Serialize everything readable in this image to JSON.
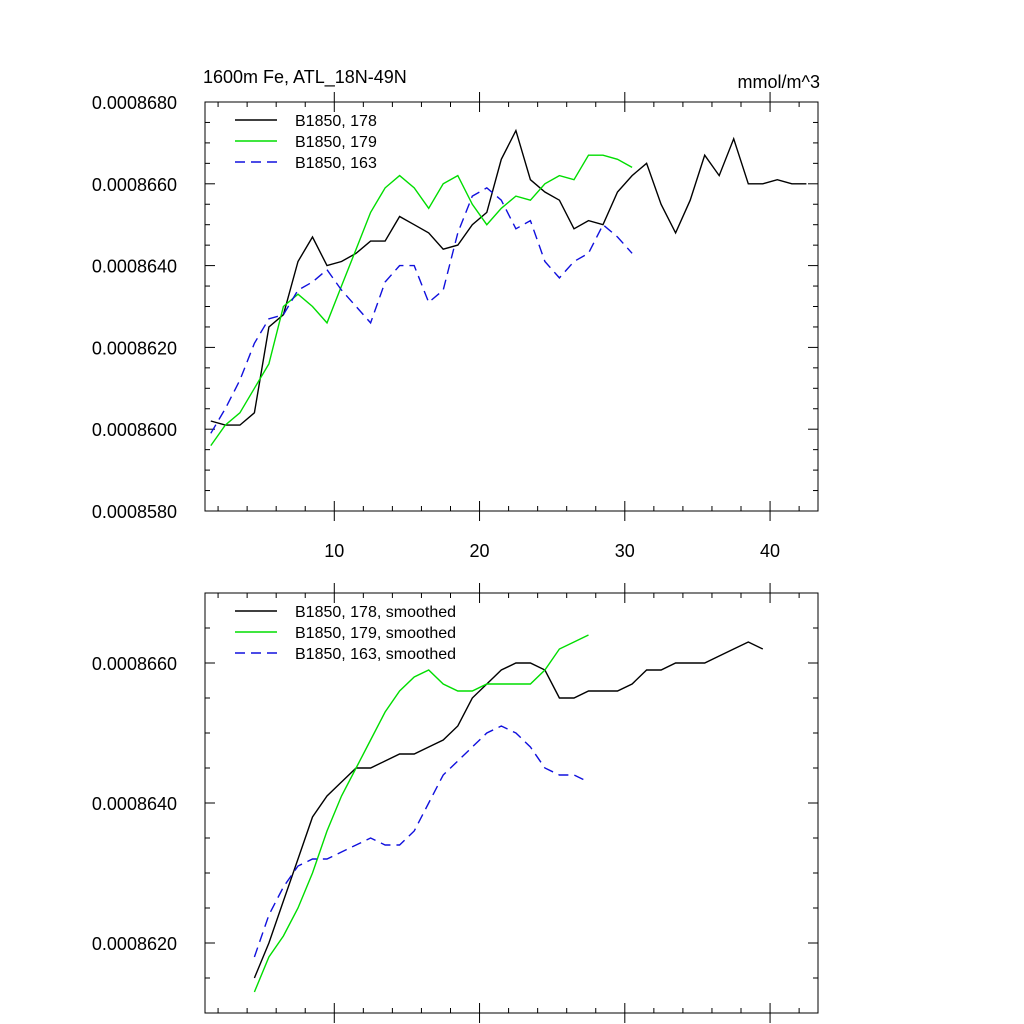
{
  "chart_data": [
    {
      "type": "line",
      "title": "1600m Fe, ATL_18N-49N",
      "units": "mmol/m^3",
      "xlabel": "",
      "ylabel": "",
      "xlim": [
        1.1,
        43.3
      ],
      "ylim": [
        0.000858,
        0.000868
      ],
      "x_ticks": [
        10,
        20,
        30,
        40
      ],
      "x_tick_labels": [
        "10",
        "20",
        "30",
        "40"
      ],
      "y_ticks": [
        0.000858,
        0.00086,
        0.000862,
        0.000864,
        0.000866,
        0.000868
      ],
      "y_tick_labels": [
        "0.0008580",
        "0.0008600",
        "0.0008620",
        "0.0008640",
        "0.0008660",
        "0.0008680"
      ],
      "legend_position": "top-left",
      "series": [
        {
          "name": "B1850, 178",
          "color": "#000000",
          "dash": "solid",
          "x": [
            1.5,
            2.5,
            3.5,
            4.5,
            5.5,
            6.5,
            7.5,
            8.5,
            9.5,
            10.5,
            11.5,
            12.5,
            13.5,
            14.5,
            15.5,
            16.5,
            17.5,
            18.5,
            19.5,
            20.5,
            21.5,
            22.5,
            23.5,
            24.5,
            25.5,
            26.5,
            27.5,
            28.5,
            29.5,
            30.5,
            31.5,
            32.5,
            33.5,
            34.5,
            35.5,
            36.5,
            37.5,
            38.5,
            39.5,
            40.5,
            41.5,
            42.5
          ],
          "y": [
            0.0008602,
            0.0008601,
            0.0008601,
            0.0008604,
            0.0008625,
            0.0008628,
            0.0008641,
            0.0008647,
            0.000864,
            0.0008641,
            0.0008643,
            0.0008646,
            0.0008646,
            0.0008652,
            0.000865,
            0.0008648,
            0.0008644,
            0.0008645,
            0.000865,
            0.0008653,
            0.0008666,
            0.0008673,
            0.0008661,
            0.0008658,
            0.0008656,
            0.0008649,
            0.0008651,
            0.000865,
            0.0008658,
            0.0008662,
            0.0008665,
            0.0008655,
            0.0008648,
            0.0008656,
            0.0008667,
            0.0008662,
            0.0008671,
            0.000866,
            0.000866,
            0.0008661,
            0.000866,
            0.000866
          ]
        },
        {
          "name": "B1850, 179",
          "color": "#00dd00",
          "dash": "solid",
          "x": [
            1.5,
            2.5,
            3.5,
            4.5,
            5.5,
            6.5,
            7.5,
            8.5,
            9.5,
            10.5,
            11.5,
            12.5,
            13.5,
            14.5,
            15.5,
            16.5,
            17.5,
            18.5,
            19.5,
            20.5,
            21.5,
            22.5,
            23.5,
            24.5,
            25.5,
            26.5,
            27.5,
            28.5,
            29.5,
            30.5
          ],
          "y": [
            0.0008596,
            0.0008601,
            0.0008604,
            0.000861,
            0.0008616,
            0.000863,
            0.0008633,
            0.000863,
            0.0008626,
            0.0008635,
            0.0008644,
            0.0008653,
            0.0008659,
            0.0008662,
            0.0008659,
            0.0008654,
            0.000866,
            0.0008662,
            0.0008655,
            0.000865,
            0.0008654,
            0.0008657,
            0.0008656,
            0.000866,
            0.0008662,
            0.0008661,
            0.0008667,
            0.0008667,
            0.0008666,
            0.0008664
          ]
        },
        {
          "name": "B1850, 163",
          "color": "#1010dd",
          "dash": "dashed",
          "x": [
            1.5,
            2.5,
            3.5,
            4.5,
            5.5,
            6.5,
            7.5,
            8.5,
            9.5,
            10.5,
            11.5,
            12.5,
            13.5,
            14.5,
            15.5,
            16.5,
            17.5,
            18.5,
            19.5,
            20.5,
            21.5,
            22.5,
            23.5,
            24.5,
            25.5,
            26.5,
            27.5,
            28.5,
            29.5,
            30.5
          ],
          "y": [
            0.0008599,
            0.0008605,
            0.0008612,
            0.0008621,
            0.0008627,
            0.0008628,
            0.0008634,
            0.0008636,
            0.0008639,
            0.0008634,
            0.000863,
            0.0008626,
            0.0008636,
            0.000864,
            0.000864,
            0.0008631,
            0.0008634,
            0.0008648,
            0.0008657,
            0.0008659,
            0.0008656,
            0.0008649,
            0.0008651,
            0.0008641,
            0.0008637,
            0.0008641,
            0.0008643,
            0.000865,
            0.0008647,
            0.0008643
          ]
        }
      ]
    },
    {
      "type": "line",
      "title": "",
      "xlabel": "",
      "ylabel": "",
      "xlim": [
        1.1,
        43.3
      ],
      "ylim": [
        0.000861,
        0.000867
      ],
      "x_ticks": [
        10,
        20,
        30,
        40
      ],
      "x_tick_labels": [],
      "y_ticks": [
        0.000862,
        0.000864,
        0.000866
      ],
      "y_tick_labels": [
        "0.0008620",
        "0.0008640",
        "0.0008660"
      ],
      "legend_position": "top-left",
      "series": [
        {
          "name": "B1850, 178, smoothed",
          "color": "#000000",
          "dash": "solid",
          "x": [
            4.5,
            5.5,
            6.5,
            7.5,
            8.5,
            9.5,
            10.5,
            11.5,
            12.5,
            13.5,
            14.5,
            15.5,
            16.5,
            17.5,
            18.5,
            19.5,
            20.5,
            21.5,
            22.5,
            23.5,
            24.5,
            25.5,
            26.5,
            27.5,
            28.5,
            29.5,
            30.5,
            31.5,
            32.5,
            33.5,
            34.5,
            35.5,
            36.5,
            37.5,
            38.5,
            39.5
          ],
          "y": [
            0.0008615,
            0.000862,
            0.0008626,
            0.0008632,
            0.0008638,
            0.0008641,
            0.0008643,
            0.0008645,
            0.0008645,
            0.0008646,
            0.0008647,
            0.0008647,
            0.0008648,
            0.0008649,
            0.0008651,
            0.0008655,
            0.0008657,
            0.0008659,
            0.000866,
            0.000866,
            0.0008659,
            0.0008655,
            0.0008655,
            0.0008656,
            0.0008656,
            0.0008656,
            0.0008657,
            0.0008659,
            0.0008659,
            0.000866,
            0.000866,
            0.000866,
            0.0008661,
            0.0008662,
            0.0008663,
            0.0008662
          ]
        },
        {
          "name": "B1850, 179, smoothed",
          "color": "#00dd00",
          "dash": "solid",
          "x": [
            4.5,
            5.5,
            6.5,
            7.5,
            8.5,
            9.5,
            10.5,
            11.5,
            12.5,
            13.5,
            14.5,
            15.5,
            16.5,
            17.5,
            18.5,
            19.5,
            20.5,
            21.5,
            22.5,
            23.5,
            24.5,
            25.5,
            26.5,
            27.5
          ],
          "y": [
            0.0008613,
            0.0008618,
            0.0008621,
            0.0008625,
            0.000863,
            0.0008636,
            0.0008641,
            0.0008645,
            0.0008649,
            0.0008653,
            0.0008656,
            0.0008658,
            0.0008659,
            0.0008657,
            0.0008656,
            0.0008656,
            0.0008657,
            0.0008657,
            0.0008657,
            0.0008657,
            0.0008659,
            0.0008662,
            0.0008663,
            0.0008664
          ]
        },
        {
          "name": "B1850, 163, smoothed",
          "color": "#1010dd",
          "dash": "dashed",
          "x": [
            4.5,
            5.5,
            6.5,
            7.5,
            8.5,
            9.5,
            10.5,
            11.5,
            12.5,
            13.5,
            14.5,
            15.5,
            16.5,
            17.5,
            18.5,
            19.5,
            20.5,
            21.5,
            22.5,
            23.5,
            24.5,
            25.5,
            26.5,
            27.5
          ],
          "y": [
            0.0008618,
            0.0008624,
            0.0008628,
            0.0008631,
            0.0008632,
            0.0008632,
            0.0008633,
            0.0008634,
            0.0008635,
            0.0008634,
            0.0008634,
            0.0008636,
            0.000864,
            0.0008644,
            0.0008646,
            0.0008648,
            0.000865,
            0.0008651,
            0.000865,
            0.0008648,
            0.0008645,
            0.0008644,
            0.0008644,
            0.0008643
          ]
        }
      ]
    }
  ]
}
